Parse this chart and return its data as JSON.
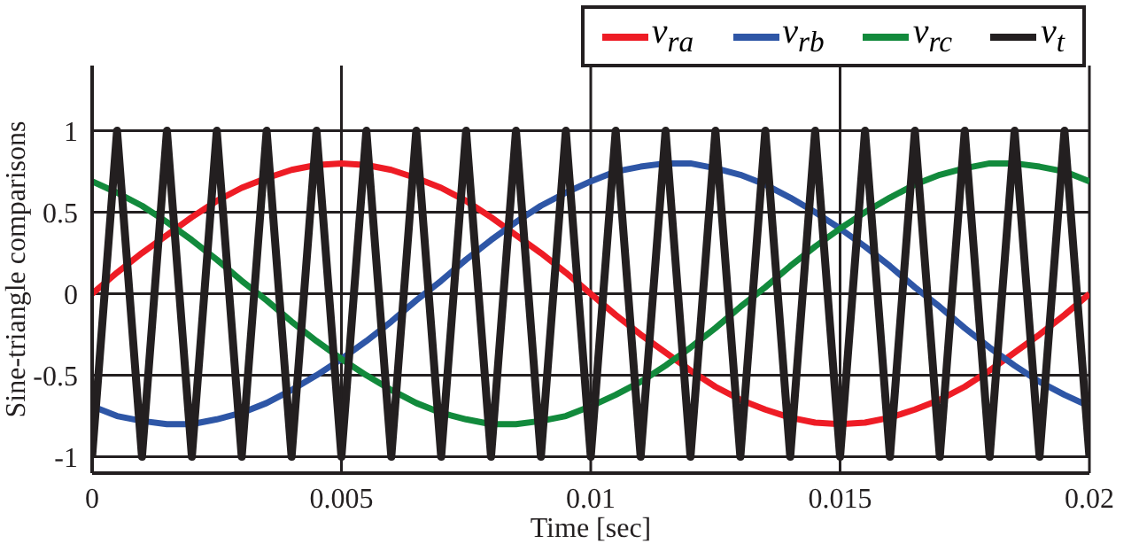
{
  "chart_data": {
    "type": "line",
    "xlabel": "Time [sec]",
    "ylabel": "Sine-triangle comparisons",
    "x": [
      0,
      0.0005,
      0.001,
      0.0015,
      0.002,
      0.0025,
      0.003,
      0.0035,
      0.004,
      0.0045,
      0.005,
      0.0055,
      0.006,
      0.0065,
      0.007,
      0.0075,
      0.008,
      0.0085,
      0.009,
      0.0095,
      0.01,
      0.0105,
      0.011,
      0.0115,
      0.012,
      0.0125,
      0.013,
      0.0135,
      0.014,
      0.0145,
      0.015,
      0.0155,
      0.016,
      0.0165,
      0.017,
      0.0175,
      0.018,
      0.0185,
      0.019,
      0.0195,
      0.02
    ],
    "series": [
      {
        "name": "v$_{ra}$",
        "color": "#ee1c25",
        "values": [
          0,
          0.13,
          0.25,
          0.36,
          0.47,
          0.57,
          0.65,
          0.71,
          0.76,
          0.79,
          0.8,
          0.79,
          0.76,
          0.71,
          0.65,
          0.57,
          0.47,
          0.36,
          0.25,
          0.13,
          0,
          -0.13,
          -0.25,
          -0.36,
          -0.47,
          -0.57,
          -0.65,
          -0.71,
          -0.76,
          -0.79,
          -0.8,
          -0.79,
          -0.76,
          -0.71,
          -0.65,
          -0.57,
          -0.47,
          -0.36,
          -0.25,
          -0.13,
          0
        ]
      },
      {
        "name": "v$_{rb}$",
        "color": "#2e56a6",
        "values": [
          -0.69,
          -0.75,
          -0.78,
          -0.8,
          -0.8,
          -0.77,
          -0.73,
          -0.67,
          -0.59,
          -0.5,
          -0.4,
          -0.29,
          -0.17,
          -0.04,
          0.08,
          0.21,
          0.33,
          0.44,
          0.54,
          0.62,
          0.69,
          0.75,
          0.78,
          0.8,
          0.8,
          0.77,
          0.73,
          0.67,
          0.59,
          0.5,
          0.4,
          0.29,
          0.17,
          0.04,
          -0.08,
          -0.21,
          -0.33,
          -0.44,
          -0.54,
          -0.62,
          -0.69
        ]
      },
      {
        "name": "v$_{rc}$",
        "color": "#128a3c",
        "values": [
          0.69,
          0.62,
          0.54,
          0.44,
          0.33,
          0.21,
          0.08,
          -0.04,
          -0.17,
          -0.29,
          -0.4,
          -0.5,
          -0.59,
          -0.67,
          -0.73,
          -0.77,
          -0.8,
          -0.8,
          -0.78,
          -0.75,
          -0.69,
          -0.62,
          -0.54,
          -0.44,
          -0.33,
          -0.21,
          -0.08,
          0.04,
          0.17,
          0.29,
          0.4,
          0.5,
          0.59,
          0.67,
          0.73,
          0.77,
          0.8,
          0.8,
          0.78,
          0.75,
          0.69
        ]
      },
      {
        "name": "v$_{t}$",
        "color": "#231f20",
        "values": [
          -1,
          1,
          -1,
          1,
          -1,
          1,
          -1,
          1,
          -1,
          1,
          -1,
          1,
          -1,
          1,
          -1,
          1,
          -1,
          1,
          -1,
          1,
          -1,
          1,
          -1,
          1,
          -1,
          1,
          -1,
          1,
          -1,
          1,
          -1,
          1,
          -1,
          1,
          -1,
          1,
          -1,
          1,
          -1,
          1,
          -1
        ]
      }
    ],
    "xlim": [
      0,
      0.02
    ],
    "ylim": [
      -1.1,
      1.4
    ],
    "xticks": [
      0,
      0.005,
      0.01,
      0.015,
      0.02
    ],
    "yticks": [
      -1,
      -0.5,
      0,
      0.5,
      1
    ],
    "grid": true,
    "legend": "top right",
    "marker": "none",
    "line_style": "solid"
  }
}
